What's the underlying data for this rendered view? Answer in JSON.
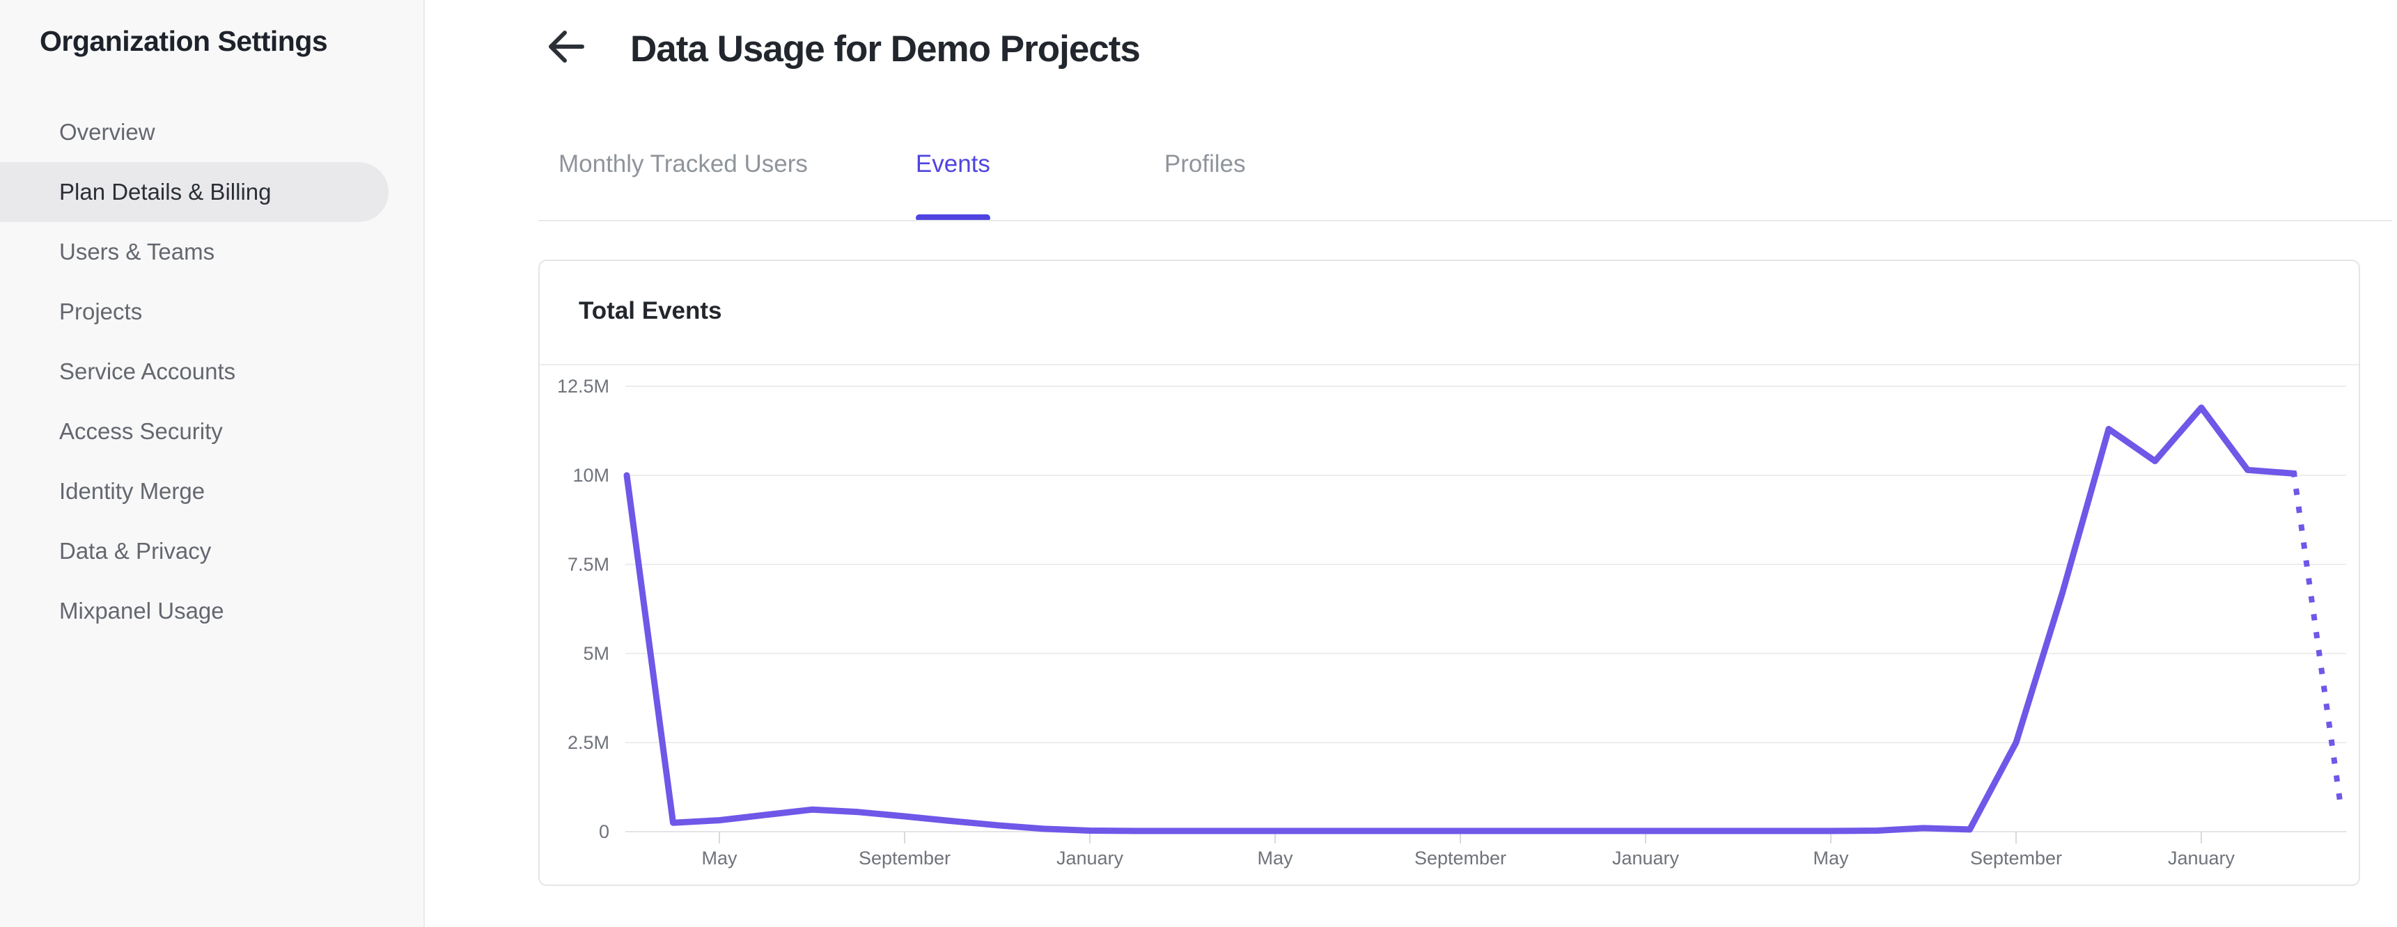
{
  "sidebar": {
    "title": "Organization Settings",
    "items": [
      {
        "label": "Overview",
        "active": false
      },
      {
        "label": "Plan Details & Billing",
        "active": true
      },
      {
        "label": "Users & Teams",
        "active": false
      },
      {
        "label": "Projects",
        "active": false
      },
      {
        "label": "Service Accounts",
        "active": false
      },
      {
        "label": "Access Security",
        "active": false
      },
      {
        "label": "Identity Merge",
        "active": false
      },
      {
        "label": "Data & Privacy",
        "active": false
      },
      {
        "label": "Mixpanel Usage",
        "active": false
      }
    ]
  },
  "header": {
    "title": "Data Usage for Demo Projects"
  },
  "tabs": [
    {
      "label": "Monthly Tracked Users",
      "active": false
    },
    {
      "label": "Events",
      "active": true
    },
    {
      "label": "Profiles",
      "active": false
    }
  ],
  "card": {
    "title": "Total Events"
  },
  "colors": {
    "accent": "#4f44e0",
    "line": "#6f57e8",
    "grid": "#ededee",
    "axis": "#e4e4e6",
    "tick": "#d9d9db",
    "tick_text": "#6f737a"
  },
  "chart_data": {
    "type": "line",
    "title": "Total Events",
    "unit": "events per month",
    "ylim": [
      0,
      12500000
    ],
    "grid": true,
    "legend": false,
    "y_ticks": [
      {
        "label": "12.5M",
        "value": 12500000
      },
      {
        "label": "10M",
        "value": 10000000
      },
      {
        "label": "7.5M",
        "value": 7500000
      },
      {
        "label": "5M",
        "value": 5000000
      },
      {
        "label": "2.5M",
        "value": 2500000
      },
      {
        "label": "0",
        "value": 0
      }
    ],
    "x_ticks": [
      {
        "label": "May",
        "index": 2
      },
      {
        "label": "September",
        "index": 6
      },
      {
        "label": "January",
        "index": 10
      },
      {
        "label": "May",
        "index": 14
      },
      {
        "label": "September",
        "index": 18
      },
      {
        "label": "January",
        "index": 22
      },
      {
        "label": "May",
        "index": 26
      },
      {
        "label": "September",
        "index": 30
      },
      {
        "label": "January",
        "index": 34
      }
    ],
    "values": [
      10000000,
      250000,
      320000,
      470000,
      620000,
      550000,
      430000,
      300000,
      180000,
      80000,
      30000,
      20000,
      20000,
      20000,
      20000,
      20000,
      20000,
      20000,
      20000,
      20000,
      20000,
      20000,
      20000,
      20000,
      20000,
      20000,
      20000,
      30000,
      100000,
      60000,
      2500000,
      6700000,
      11300000,
      10400000,
      11900000,
      10150000,
      10050000,
      800000
    ],
    "dotted_from_index": 36,
    "line_color": "#6f57e8"
  }
}
